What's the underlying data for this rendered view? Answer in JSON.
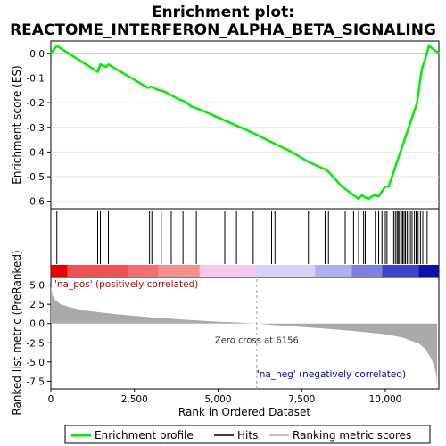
{
  "chart_data": {
    "type": "line",
    "title_line1": "Enrichment plot:",
    "title_line2": "REACTOME_INTERFERON_ALPHA_BETA_SIGNALING",
    "xlabel": "Rank in Ordered Dataset",
    "es_panel": {
      "ylabel": "Enrichment score (ES)",
      "ylim": [
        -0.63,
        0.05
      ],
      "yticks": [
        0.0,
        -0.1,
        -0.2,
        -0.3,
        -0.4,
        -0.5,
        -0.6
      ],
      "ytick_labels": [
        "0.0",
        "-0.1",
        "-0.2",
        "-0.3",
        "-0.4",
        "-0.5",
        "-0.6"
      ],
      "series": [
        {
          "name": "Enrichment profile",
          "color": "#00ee00",
          "x": [
            0,
            180,
            1400,
            1480,
            1650,
            1720,
            2900,
            3000,
            3200,
            3400,
            3600,
            3800,
            4000,
            4200,
            4400,
            5000,
            6000,
            6600,
            7200,
            7700,
            8200,
            8300,
            8700,
            9000,
            9100,
            9200,
            9300,
            9400,
            9500,
            9600,
            9700,
            9800,
            9900,
            10000,
            10100,
            10150,
            10200,
            10250,
            10300,
            10350,
            10400,
            10450,
            10500,
            10550,
            10600,
            10650,
            10700,
            10750,
            10800,
            10850,
            10900,
            10950,
            11000,
            11050,
            11100,
            11200,
            11300,
            11600
          ],
          "y": [
            0.0,
            0.03,
            -0.075,
            -0.045,
            -0.055,
            -0.045,
            -0.14,
            -0.135,
            -0.148,
            -0.155,
            -0.17,
            -0.185,
            -0.195,
            -0.215,
            -0.225,
            -0.26,
            -0.32,
            -0.36,
            -0.4,
            -0.44,
            -0.47,
            -0.48,
            -0.54,
            -0.57,
            -0.58,
            -0.59,
            -0.575,
            -0.585,
            -0.59,
            -0.58,
            -0.575,
            -0.58,
            -0.56,
            -0.54,
            -0.54,
            -0.52,
            -0.5,
            -0.48,
            -0.46,
            -0.44,
            -0.42,
            -0.4,
            -0.38,
            -0.36,
            -0.34,
            -0.32,
            -0.3,
            -0.28,
            -0.26,
            -0.24,
            -0.22,
            -0.2,
            -0.15,
            -0.1,
            -0.06,
            -0.02,
            0.03,
            0.0
          ]
        }
      ]
    },
    "hits_panel": {
      "hit_ranks": [
        180,
        1400,
        1480,
        1720,
        2950,
        3020,
        3300,
        3600,
        3950,
        4350,
        5200,
        5550,
        6050,
        6600,
        6700,
        7700,
        8200,
        8300,
        8800,
        9050,
        9200,
        9350,
        9400,
        9700,
        9800,
        9900,
        10000,
        10050,
        10200,
        10250,
        10300,
        10350,
        10380,
        10420,
        10480,
        10520,
        10560,
        10600,
        10650,
        10700,
        10750,
        10800,
        10870,
        10920,
        10980,
        11050,
        11120,
        11250
      ]
    },
    "metric_panel": {
      "ylabel": "Ranked list metric (PreRanked)",
      "ylim": [
        -8.5,
        6.0
      ],
      "yticks": [
        5.0,
        2.5,
        0.0,
        -2.5,
        -5.0,
        -7.5
      ],
      "ytick_labels": [
        "5.0",
        "2.5",
        "0.0",
        "-2.5",
        "-5.0",
        "-7.5"
      ],
      "fill_color": "#aaaaaa",
      "x": [
        0,
        50,
        150,
        300,
        600,
        1000,
        2000,
        3000,
        4000,
        5000,
        6156,
        7000,
        8000,
        9000,
        10000,
        10500,
        11000,
        11200,
        11400,
        11500,
        11550
      ],
      "y": [
        4.8,
        3.6,
        3.0,
        2.5,
        2.1,
        1.7,
        1.2,
        0.8,
        0.5,
        0.25,
        0.0,
        -0.3,
        -0.6,
        -0.95,
        -1.4,
        -1.8,
        -2.6,
        -3.3,
        -4.8,
        -6.2,
        -7.8
      ]
    },
    "xlim": [
      0,
      11600
    ],
    "xticks": [
      0,
      2500,
      5000,
      7500,
      10000
    ],
    "xtick_labels": [
      "0",
      "2,500",
      "5,000",
      "7,500",
      "10,000"
    ],
    "annotations": {
      "pos_label": "'na_pos' (positively correlated)",
      "neg_label": "'na_neg' (negatively correlated)",
      "zero_cross_label": "Zero cross at 6156",
      "zero_cross": 6156
    },
    "legend": [
      {
        "label": "Enrichment profile",
        "color": "#00ee00"
      },
      {
        "label": "Hits",
        "color": "#000000"
      },
      {
        "label": "Ranking metric scores",
        "color": "#aaaaaa"
      }
    ],
    "colorbar_breaks": [
      {
        "from": 0,
        "to": 500,
        "color": "#e80000"
      },
      {
        "from": 500,
        "to": 2300,
        "color": "#f05050"
      },
      {
        "from": 2300,
        "to": 3200,
        "color": "#f47070"
      },
      {
        "from": 3200,
        "to": 4450,
        "color": "#f49090"
      },
      {
        "from": 4450,
        "to": 6100,
        "color": "#f8c8e8"
      },
      {
        "from": 6100,
        "to": 7900,
        "color": "#d8d0f8"
      },
      {
        "from": 7900,
        "to": 9000,
        "color": "#b0b0f0"
      },
      {
        "from": 9000,
        "to": 9900,
        "color": "#8080e0"
      },
      {
        "from": 9900,
        "to": 11000,
        "color": "#4040c8"
      },
      {
        "from": 11000,
        "to": 11600,
        "color": "#1010b0"
      }
    ]
  }
}
